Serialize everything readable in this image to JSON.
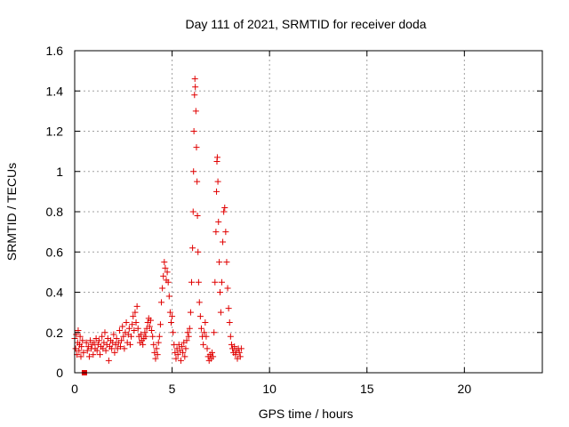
{
  "chart_data": {
    "type": "scatter",
    "title": "Day 111 of 2021, SRMTID for receiver doda",
    "xlabel": "GPS time / hours",
    "ylabel": "SRMTID / TECUs",
    "xlim": [
      0,
      24
    ],
    "ylim": [
      0,
      1.6
    ],
    "x_ticks": [
      0,
      5,
      10,
      15,
      20
    ],
    "x_tick_labels": [
      "0",
      "5",
      "10",
      "15",
      "20"
    ],
    "y_ticks": [
      0,
      0.2,
      0.4,
      0.6,
      0.8,
      1.0,
      1.2,
      1.4,
      1.6
    ],
    "y_tick_labels": [
      "0",
      "0.2",
      "0.4",
      "0.6",
      "0.8",
      "1",
      "1.2",
      "1.4",
      "1.6"
    ],
    "grid": true,
    "marker": "+",
    "series_color": "#e00000",
    "special_point": {
      "x": 0.5,
      "y": 0.0,
      "marker": "square"
    },
    "series": [
      {
        "name": "SRMTID",
        "points": [
          [
            0.0,
            0.17
          ],
          [
            0.05,
            0.12
          ],
          [
            0.08,
            0.19
          ],
          [
            0.12,
            0.09
          ],
          [
            0.15,
            0.15
          ],
          [
            0.18,
            0.21
          ],
          [
            0.22,
            0.11
          ],
          [
            0.25,
            0.14
          ],
          [
            0.28,
            0.18
          ],
          [
            0.32,
            0.08
          ],
          [
            0.35,
            0.13
          ],
          [
            0.4,
            0.16
          ],
          [
            0.45,
            0.1
          ],
          [
            0.6,
            0.15
          ],
          [
            0.65,
            0.11
          ],
          [
            0.7,
            0.13
          ],
          [
            0.75,
            0.08
          ],
          [
            0.8,
            0.16
          ],
          [
            0.85,
            0.12
          ],
          [
            0.9,
            0.14
          ],
          [
            0.95,
            0.09
          ],
          [
            1.0,
            0.15
          ],
          [
            1.05,
            0.12
          ],
          [
            1.1,
            0.17
          ],
          [
            1.15,
            0.11
          ],
          [
            1.2,
            0.14
          ],
          [
            1.25,
            0.16
          ],
          [
            1.3,
            0.09
          ],
          [
            1.35,
            0.13
          ],
          [
            1.4,
            0.18
          ],
          [
            1.45,
            0.12
          ],
          [
            1.5,
            0.15
          ],
          [
            1.55,
            0.2
          ],
          [
            1.6,
            0.11
          ],
          [
            1.65,
            0.14
          ],
          [
            1.7,
            0.17
          ],
          [
            1.75,
            0.06
          ],
          [
            1.8,
            0.13
          ],
          [
            1.85,
            0.16
          ],
          [
            1.9,
            0.12
          ],
          [
            1.95,
            0.15
          ],
          [
            2.0,
            0.19
          ],
          [
            2.05,
            0.1
          ],
          [
            2.1,
            0.14
          ],
          [
            2.15,
            0.17
          ],
          [
            2.2,
            0.12
          ],
          [
            2.25,
            0.15
          ],
          [
            2.3,
            0.21
          ],
          [
            2.35,
            0.13
          ],
          [
            2.4,
            0.16
          ],
          [
            2.45,
            0.23
          ],
          [
            2.5,
            0.18
          ],
          [
            2.55,
            0.12
          ],
          [
            2.6,
            0.2
          ],
          [
            2.65,
            0.25
          ],
          [
            2.7,
            0.15
          ],
          [
            2.75,
            0.19
          ],
          [
            2.8,
            0.22
          ],
          [
            2.85,
            0.14
          ],
          [
            2.9,
            0.18
          ],
          [
            2.95,
            0.24
          ],
          [
            3.0,
            0.28
          ],
          [
            3.05,
            0.21
          ],
          [
            3.1,
            0.3
          ],
          [
            3.15,
            0.25
          ],
          [
            3.2,
            0.33
          ],
          [
            3.25,
            0.22
          ],
          [
            3.3,
            0.18
          ],
          [
            3.35,
            0.15
          ],
          [
            3.4,
            0.19
          ],
          [
            3.45,
            0.16
          ],
          [
            3.5,
            0.14
          ],
          [
            3.55,
            0.17
          ],
          [
            3.6,
            0.2
          ],
          [
            3.65,
            0.18
          ],
          [
            3.7,
            0.22
          ],
          [
            3.75,
            0.25
          ],
          [
            3.8,
            0.27
          ],
          [
            3.85,
            0.23
          ],
          [
            3.9,
            0.26
          ],
          [
            3.95,
            0.21
          ],
          [
            4.0,
            0.18
          ],
          [
            4.05,
            0.14
          ],
          [
            4.1,
            0.1
          ],
          [
            4.15,
            0.07
          ],
          [
            4.2,
            0.12
          ],
          [
            4.25,
            0.09
          ],
          [
            4.3,
            0.15
          ],
          [
            4.35,
            0.18
          ],
          [
            4.4,
            0.24
          ],
          [
            4.45,
            0.35
          ],
          [
            4.5,
            0.42
          ],
          [
            4.55,
            0.48
          ],
          [
            4.6,
            0.55
          ],
          [
            4.65,
            0.52
          ],
          [
            4.7,
            0.46
          ],
          [
            4.75,
            0.5
          ],
          [
            4.8,
            0.45
          ],
          [
            4.85,
            0.38
          ],
          [
            4.9,
            0.3
          ],
          [
            4.95,
            0.25
          ],
          [
            5.0,
            0.28
          ],
          [
            5.05,
            0.2
          ],
          [
            5.1,
            0.14
          ],
          [
            5.15,
            0.1
          ],
          [
            5.2,
            0.07
          ],
          [
            5.25,
            0.12
          ],
          [
            5.3,
            0.09
          ],
          [
            5.35,
            0.14
          ],
          [
            5.4,
            0.11
          ],
          [
            5.45,
            0.06
          ],
          [
            5.5,
            0.13
          ],
          [
            5.55,
            0.1
          ],
          [
            5.6,
            0.15
          ],
          [
            5.65,
            0.08
          ],
          [
            5.7,
            0.12
          ],
          [
            5.75,
            0.16
          ],
          [
            5.8,
            0.2
          ],
          [
            5.85,
            0.18
          ],
          [
            5.9,
            0.22
          ],
          [
            5.95,
            0.3
          ],
          [
            6.0,
            0.45
          ],
          [
            6.05,
            0.62
          ],
          [
            6.08,
            0.8
          ],
          [
            6.1,
            1.0
          ],
          [
            6.12,
            1.2
          ],
          [
            6.15,
            1.38
          ],
          [
            6.17,
            1.46
          ],
          [
            6.19,
            1.42
          ],
          [
            6.22,
            1.3
          ],
          [
            6.25,
            1.12
          ],
          [
            6.28,
            0.95
          ],
          [
            6.3,
            0.78
          ],
          [
            6.33,
            0.6
          ],
          [
            6.36,
            0.45
          ],
          [
            6.4,
            0.35
          ],
          [
            6.45,
            0.28
          ],
          [
            6.5,
            0.22
          ],
          [
            6.55,
            0.18
          ],
          [
            6.6,
            0.14
          ],
          [
            6.65,
            0.2
          ],
          [
            6.7,
            0.25
          ],
          [
            6.75,
            0.18
          ],
          [
            6.8,
            0.12
          ],
          [
            6.85,
            0.08
          ],
          [
            6.9,
            0.06
          ],
          [
            6.95,
            0.09
          ],
          [
            7.0,
            0.07
          ],
          [
            7.05,
            0.1
          ],
          [
            7.1,
            0.08
          ],
          [
            7.15,
            0.2
          ],
          [
            7.2,
            0.45
          ],
          [
            7.25,
            0.7
          ],
          [
            7.28,
            0.9
          ],
          [
            7.3,
            1.05
          ],
          [
            7.32,
            1.07
          ],
          [
            7.35,
            0.95
          ],
          [
            7.38,
            0.75
          ],
          [
            7.42,
            0.55
          ],
          [
            7.46,
            0.4
          ],
          [
            7.5,
            0.3
          ],
          [
            7.55,
            0.45
          ],
          [
            7.6,
            0.65
          ],
          [
            7.65,
            0.8
          ],
          [
            7.7,
            0.82
          ],
          [
            7.75,
            0.7
          ],
          [
            7.8,
            0.55
          ],
          [
            7.85,
            0.42
          ],
          [
            7.9,
            0.32
          ],
          [
            7.95,
            0.25
          ],
          [
            8.0,
            0.18
          ],
          [
            8.05,
            0.14
          ],
          [
            8.1,
            0.12
          ],
          [
            8.15,
            0.1
          ],
          [
            8.2,
            0.13
          ],
          [
            8.25,
            0.09
          ],
          [
            8.3,
            0.11
          ],
          [
            8.35,
            0.07
          ],
          [
            8.4,
            0.12
          ],
          [
            8.45,
            0.1
          ],
          [
            8.5,
            0.08
          ],
          [
            8.55,
            0.12
          ]
        ]
      }
    ]
  }
}
